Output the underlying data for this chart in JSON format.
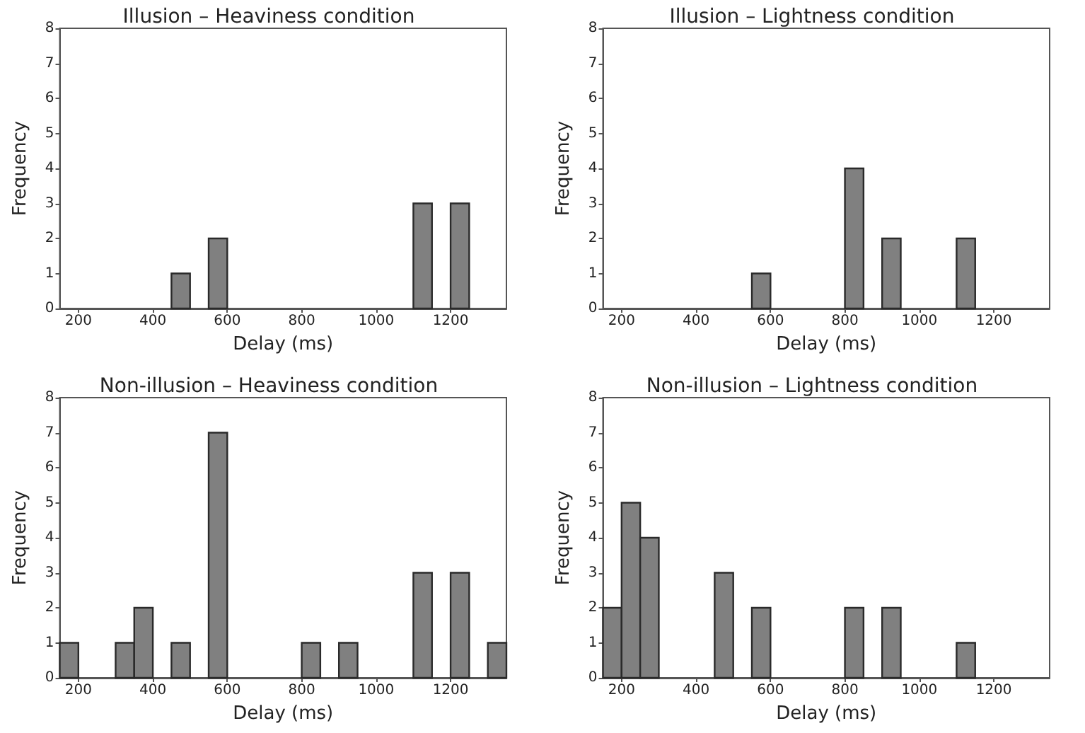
{
  "chart_data": [
    {
      "type": "histogram",
      "title": "Illusion – Heaviness condition",
      "xlabel": "Delay (ms)",
      "ylabel": "Frequency",
      "color": "#808080",
      "bins": [
        150,
        200,
        250,
        300,
        350,
        400,
        450,
        500,
        550,
        600,
        650,
        700,
        750,
        800,
        850,
        900,
        950,
        1000,
        1050,
        1100,
        1150,
        1200,
        1250,
        1300,
        1350
      ],
      "values": [
        0,
        0,
        0,
        0,
        0,
        0,
        1,
        0,
        2,
        0,
        0,
        0,
        0,
        0,
        0,
        0,
        0,
        0,
        0,
        3,
        0,
        3,
        0,
        0
      ],
      "xlim": [
        150,
        1350
      ],
      "xticks": [
        200,
        400,
        600,
        800,
        1000,
        1200
      ],
      "ylim": [
        0,
        8
      ],
      "yticks": [
        0,
        1,
        2,
        3,
        4,
        5,
        6,
        7,
        8
      ],
      "grid": false
    },
    {
      "type": "histogram",
      "title": "Illusion – Lightness condition",
      "xlabel": "Delay (ms)",
      "ylabel": "Frequency",
      "color": "#808080",
      "bins": [
        150,
        200,
        250,
        300,
        350,
        400,
        450,
        500,
        550,
        600,
        650,
        700,
        750,
        800,
        850,
        900,
        950,
        1000,
        1050,
        1100,
        1150,
        1200,
        1250,
        1300,
        1350
      ],
      "values": [
        0,
        0,
        0,
        0,
        0,
        0,
        0,
        0,
        1,
        0,
        0,
        0,
        0,
        4,
        0,
        2,
        0,
        0,
        0,
        2,
        0,
        0,
        0,
        0
      ],
      "xlim": [
        150,
        1350
      ],
      "xticks": [
        200,
        400,
        600,
        800,
        1000,
        1200
      ],
      "ylim": [
        0,
        8
      ],
      "yticks": [
        0,
        1,
        2,
        3,
        4,
        5,
        6,
        7,
        8
      ],
      "grid": false
    },
    {
      "type": "histogram",
      "title": "Non-illusion – Heaviness condition",
      "xlabel": "Delay (ms)",
      "ylabel": "Frequency",
      "color": "#808080",
      "bins": [
        150,
        200,
        250,
        300,
        350,
        400,
        450,
        500,
        550,
        600,
        650,
        700,
        750,
        800,
        850,
        900,
        950,
        1000,
        1050,
        1100,
        1150,
        1200,
        1250,
        1300,
        1350
      ],
      "values": [
        1,
        0,
        0,
        1,
        2,
        0,
        1,
        0,
        7,
        0,
        0,
        0,
        0,
        1,
        0,
        1,
        0,
        0,
        0,
        3,
        0,
        3,
        0,
        1
      ],
      "xlim": [
        150,
        1350
      ],
      "xticks": [
        200,
        400,
        600,
        800,
        1000,
        1200
      ],
      "ylim": [
        0,
        8
      ],
      "yticks": [
        0,
        1,
        2,
        3,
        4,
        5,
        6,
        7,
        8
      ],
      "grid": false
    },
    {
      "type": "histogram",
      "title": "Non-illusion – Lightness condition",
      "xlabel": "Delay (ms)",
      "ylabel": "Frequency",
      "color": "#808080",
      "bins": [
        150,
        200,
        250,
        300,
        350,
        400,
        450,
        500,
        550,
        600,
        650,
        700,
        750,
        800,
        850,
        900,
        950,
        1000,
        1050,
        1100,
        1150,
        1200,
        1250,
        1300,
        1350
      ],
      "values": [
        2,
        5,
        4,
        0,
        0,
        0,
        3,
        0,
        2,
        0,
        0,
        0,
        0,
        2,
        0,
        2,
        0,
        0,
        0,
        1,
        0,
        0,
        0,
        0
      ],
      "xlim": [
        150,
        1350
      ],
      "xticks": [
        200,
        400,
        600,
        800,
        1000,
        1200
      ],
      "ylim": [
        0,
        8
      ],
      "yticks": [
        0,
        1,
        2,
        3,
        4,
        5,
        6,
        7,
        8
      ],
      "grid": false
    }
  ]
}
